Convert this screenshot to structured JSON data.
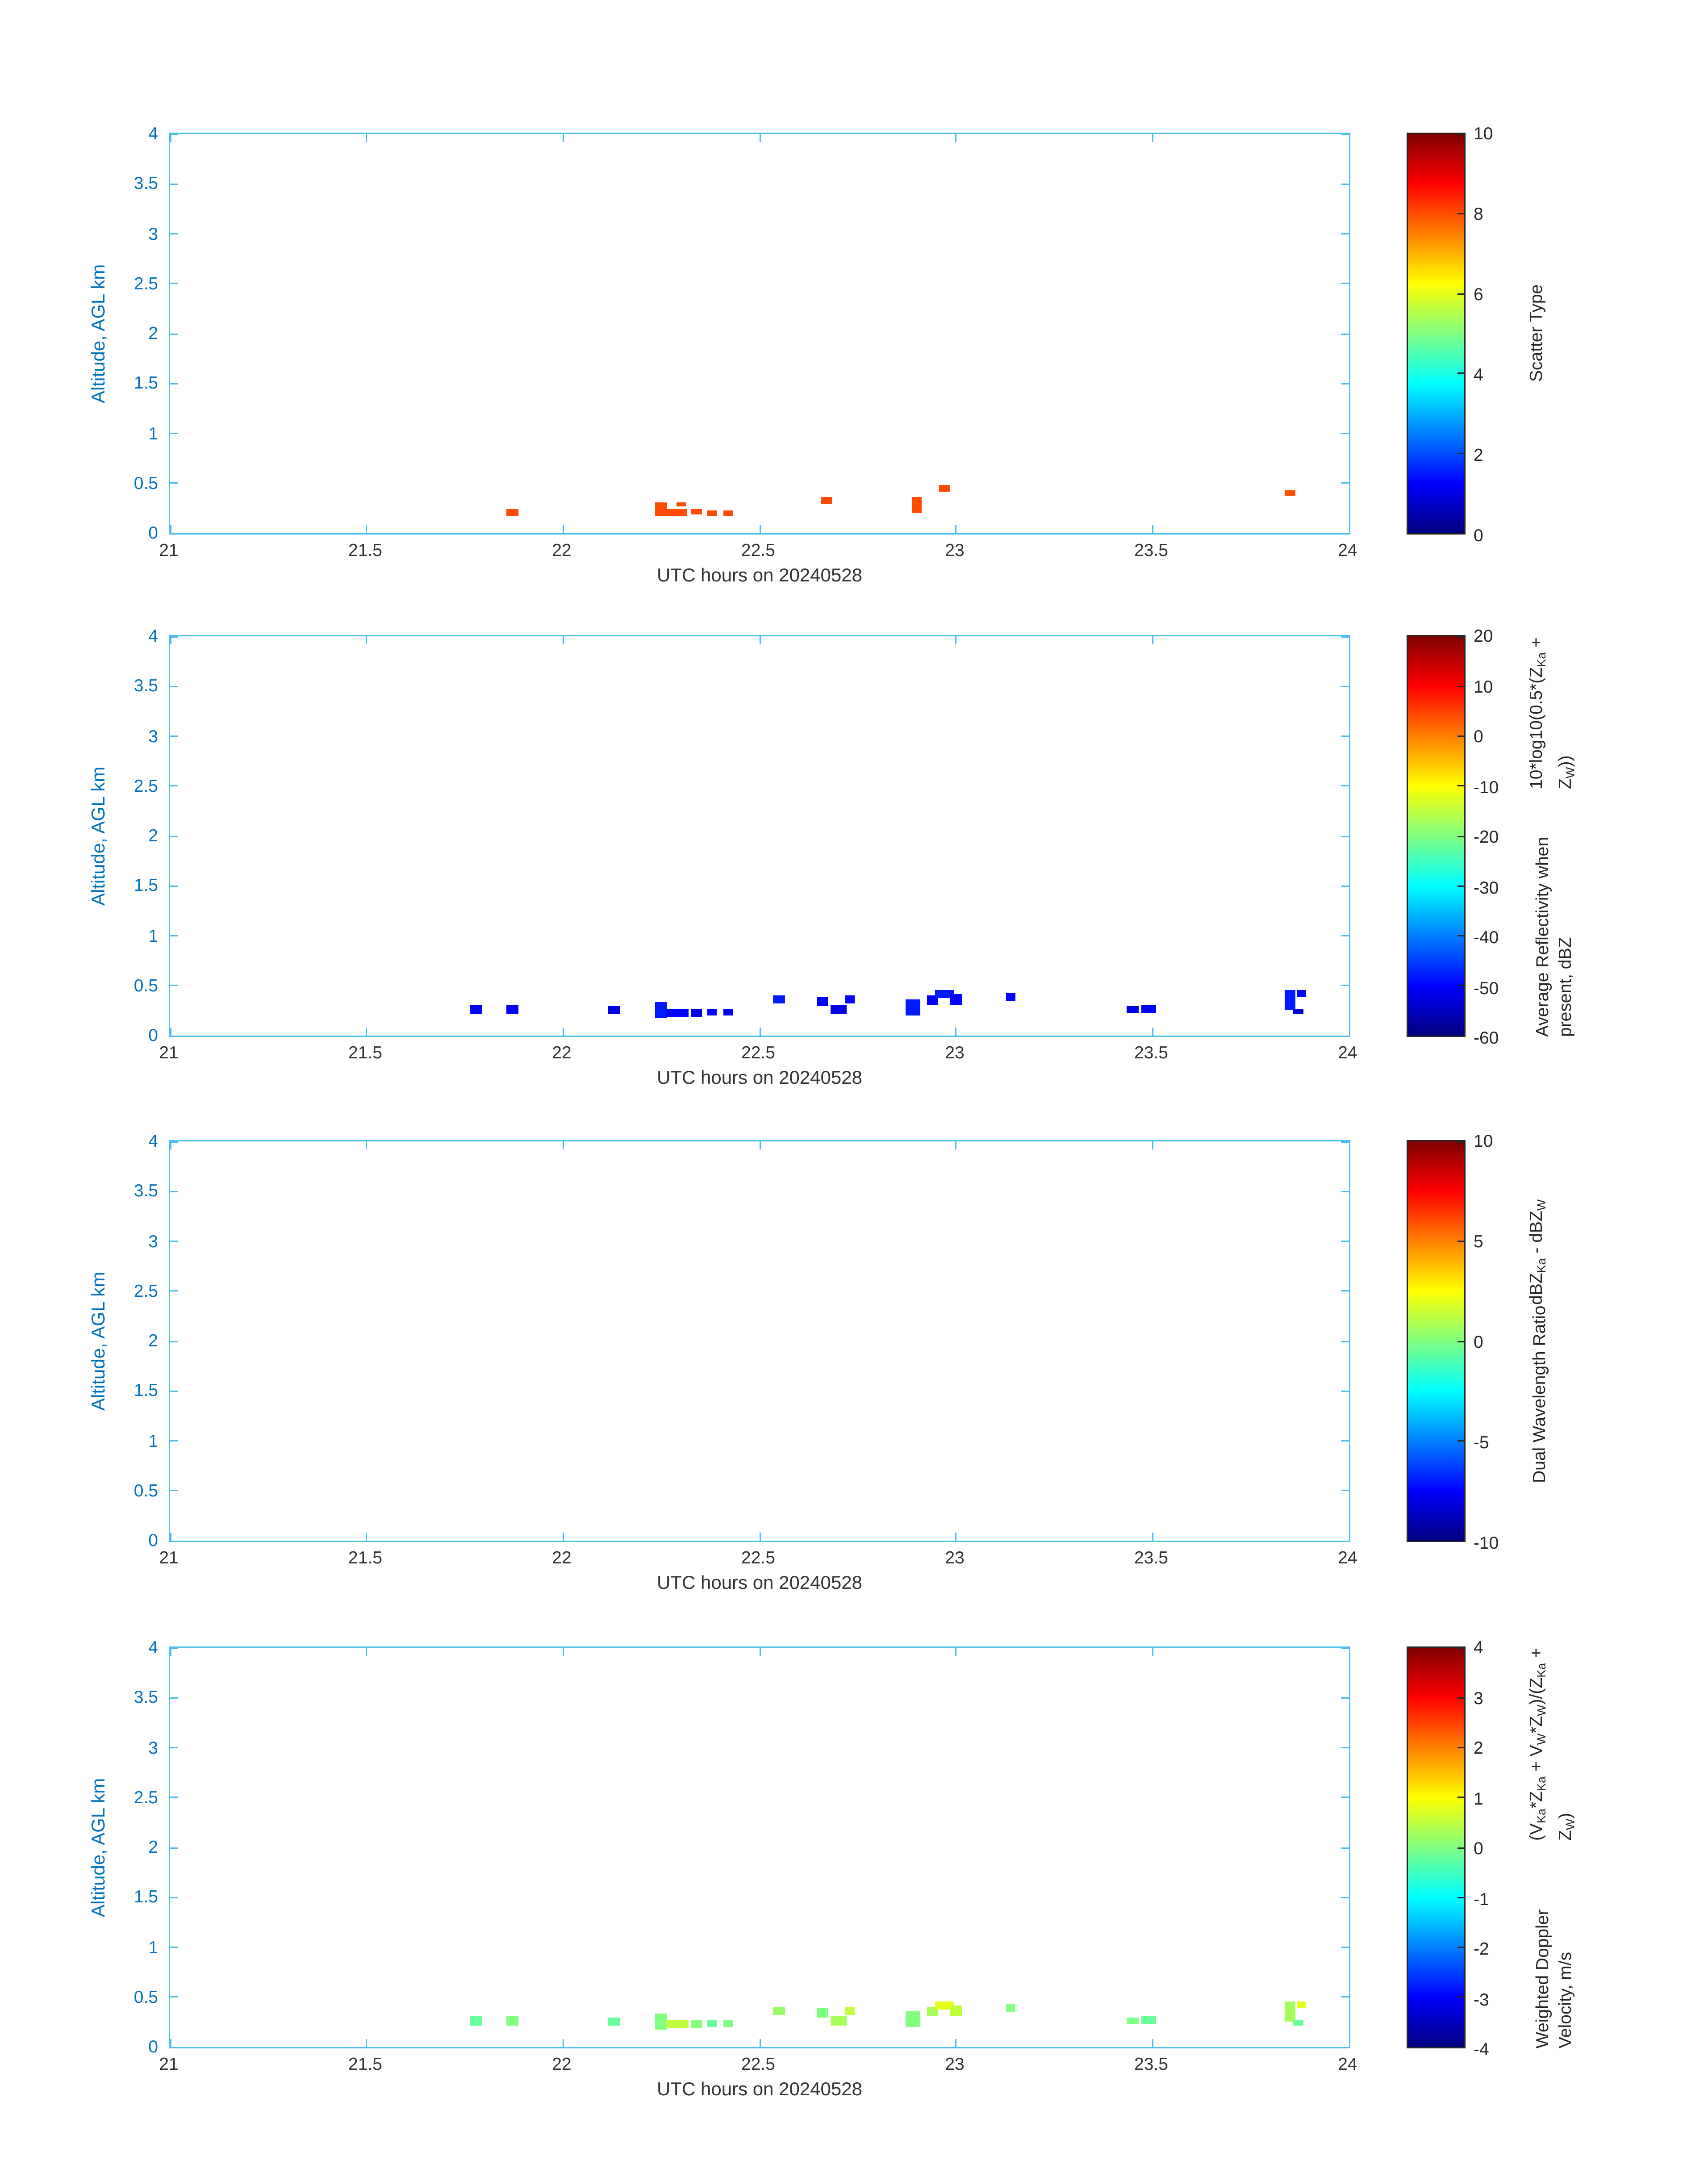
{
  "styles": {
    "background": "#ffffff",
    "axis_color": "#4DBEEE",
    "y_text_color": "#0072BD",
    "x_text_color": "#333333",
    "colorbar_text_color": "#262626",
    "colormap": "jet"
  },
  "chart_data": [
    {
      "type": "heatmap",
      "title": "",
      "xlabel": "UTC hours on 20240528",
      "ylabel": "Altitude, AGL km",
      "xlim": [
        21,
        24
      ],
      "ylim": [
        0,
        4
      ],
      "x_ticks": [
        21,
        21.5,
        22,
        22.5,
        23,
        23.5,
        24
      ],
      "x_tick_labels": [
        "21",
        "21.5",
        "22",
        "22.5",
        "23",
        "23.5",
        "24"
      ],
      "y_ticks": [
        0,
        0.5,
        1,
        1.5,
        2,
        2.5,
        3,
        3.5,
        4
      ],
      "y_tick_labels": [
        "0",
        "0.5",
        "1",
        "1.5",
        "2",
        "2.5",
        "3",
        "3.5",
        "4"
      ],
      "colorbar": {
        "range": [
          0,
          10
        ],
        "ticks": [
          0,
          2,
          4,
          6,
          8,
          10
        ],
        "tick_labels": [
          "0",
          "2",
          "4",
          "6",
          "8",
          "10"
        ],
        "label_lines": [
          "Scatter Type"
        ]
      },
      "points": [
        {
          "x": 21.87,
          "y": 0.21,
          "w": 0.03,
          "h": 0.06,
          "v": 8
        },
        {
          "x": 22.25,
          "y": 0.24,
          "w": 0.03,
          "h": 0.14,
          "v": 8
        },
        {
          "x": 22.29,
          "y": 0.21,
          "w": 0.05,
          "h": 0.06,
          "v": 8
        },
        {
          "x": 22.3,
          "y": 0.29,
          "w": 0.025,
          "h": 0.05,
          "v": 8
        },
        {
          "x": 22.34,
          "y": 0.21,
          "w": 0.025,
          "h": 0.05,
          "v": 8
        },
        {
          "x": 22.38,
          "y": 0.2,
          "w": 0.025,
          "h": 0.05,
          "v": 8
        },
        {
          "x": 22.42,
          "y": 0.2,
          "w": 0.025,
          "h": 0.05,
          "v": 8
        },
        {
          "x": 22.67,
          "y": 0.33,
          "w": 0.025,
          "h": 0.06,
          "v": 8
        },
        {
          "x": 22.9,
          "y": 0.28,
          "w": 0.025,
          "h": 0.16,
          "v": 8
        },
        {
          "x": 22.97,
          "y": 0.45,
          "w": 0.025,
          "h": 0.06,
          "v": 8
        },
        {
          "x": 23.85,
          "y": 0.4,
          "w": 0.025,
          "h": 0.05,
          "v": 8
        }
      ]
    },
    {
      "type": "heatmap",
      "title": "",
      "xlabel": "UTC hours on 20240528",
      "ylabel": "Altitude, AGL km",
      "xlim": [
        21,
        24
      ],
      "ylim": [
        0,
        4
      ],
      "x_ticks": [
        21,
        21.5,
        22,
        22.5,
        23,
        23.5,
        24
      ],
      "x_tick_labels": [
        "21",
        "21.5",
        "22",
        "22.5",
        "23",
        "23.5",
        "24"
      ],
      "y_ticks": [
        0,
        0.5,
        1,
        1.5,
        2,
        2.5,
        3,
        3.5,
        4
      ],
      "y_tick_labels": [
        "0",
        "0.5",
        "1",
        "1.5",
        "2",
        "2.5",
        "3",
        "3.5",
        "4"
      ],
      "colorbar": {
        "range": [
          -60,
          20
        ],
        "ticks": [
          -60,
          -50,
          -40,
          -30,
          -20,
          -10,
          0,
          10,
          20
        ],
        "tick_labels": [
          "-60",
          "-50",
          "-40",
          "-30",
          "-20",
          "-10",
          "0",
          "10",
          "20"
        ],
        "label_lines": [
          "Average Reflectivity when present, dBZ",
          "10*log10(0.5*(Z_{Ka} + Z_{W}))"
        ]
      },
      "points": [
        {
          "x": 21.78,
          "y": 0.26,
          "w": 0.03,
          "h": 0.09,
          "v": -50
        },
        {
          "x": 21.87,
          "y": 0.26,
          "w": 0.03,
          "h": 0.09,
          "v": -50
        },
        {
          "x": 22.13,
          "y": 0.25,
          "w": 0.03,
          "h": 0.08,
          "v": -52
        },
        {
          "x": 22.25,
          "y": 0.26,
          "w": 0.03,
          "h": 0.16,
          "v": -48
        },
        {
          "x": 22.29,
          "y": 0.23,
          "w": 0.06,
          "h": 0.08,
          "v": -50
        },
        {
          "x": 22.34,
          "y": 0.23,
          "w": 0.03,
          "h": 0.08,
          "v": -52
        },
        {
          "x": 22.38,
          "y": 0.23,
          "w": 0.025,
          "h": 0.07,
          "v": -50
        },
        {
          "x": 22.42,
          "y": 0.24,
          "w": 0.025,
          "h": 0.07,
          "v": -52
        },
        {
          "x": 22.55,
          "y": 0.36,
          "w": 0.03,
          "h": 0.08,
          "v": -48
        },
        {
          "x": 22.66,
          "y": 0.34,
          "w": 0.03,
          "h": 0.09,
          "v": -50
        },
        {
          "x": 22.7,
          "y": 0.26,
          "w": 0.04,
          "h": 0.09,
          "v": -52
        },
        {
          "x": 22.73,
          "y": 0.36,
          "w": 0.025,
          "h": 0.08,
          "v": -50
        },
        {
          "x": 22.89,
          "y": 0.28,
          "w": 0.035,
          "h": 0.17,
          "v": -48
        },
        {
          "x": 22.94,
          "y": 0.36,
          "w": 0.03,
          "h": 0.09,
          "v": -50
        },
        {
          "x": 22.97,
          "y": 0.42,
          "w": 0.05,
          "h": 0.08,
          "v": -48
        },
        {
          "x": 23.0,
          "y": 0.36,
          "w": 0.03,
          "h": 0.1,
          "v": -50
        },
        {
          "x": 23.14,
          "y": 0.39,
          "w": 0.025,
          "h": 0.07,
          "v": -50
        },
        {
          "x": 23.45,
          "y": 0.26,
          "w": 0.03,
          "h": 0.07,
          "v": -52
        },
        {
          "x": 23.49,
          "y": 0.27,
          "w": 0.035,
          "h": 0.08,
          "v": -50
        },
        {
          "x": 23.85,
          "y": 0.35,
          "w": 0.03,
          "h": 0.2,
          "v": -48
        },
        {
          "x": 23.88,
          "y": 0.42,
          "w": 0.025,
          "h": 0.07,
          "v": -50
        },
        {
          "x": 23.87,
          "y": 0.24,
          "w": 0.025,
          "h": 0.06,
          "v": -52
        }
      ]
    },
    {
      "type": "heatmap",
      "title": "",
      "xlabel": "UTC hours on 20240528",
      "ylabel": "Altitude, AGL km",
      "xlim": [
        21,
        24
      ],
      "ylim": [
        0,
        4
      ],
      "x_ticks": [
        21,
        21.5,
        22,
        22.5,
        23,
        23.5,
        24
      ],
      "x_tick_labels": [
        "21",
        "21.5",
        "22",
        "22.5",
        "23",
        "23.5",
        "24"
      ],
      "y_ticks": [
        0,
        0.5,
        1,
        1.5,
        2,
        2.5,
        3,
        3.5,
        4
      ],
      "y_tick_labels": [
        "0",
        "0.5",
        "1",
        "1.5",
        "2",
        "2.5",
        "3",
        "3.5",
        "4"
      ],
      "colorbar": {
        "range": [
          -10,
          10
        ],
        "ticks": [
          -10,
          -5,
          0,
          5,
          10
        ],
        "tick_labels": [
          "-10",
          "-5",
          "0",
          "5",
          "10"
        ],
        "label_lines": [
          "Dual Wavelength Ratio",
          "dBZ_{Ka} - dBZ_{W}"
        ]
      },
      "points": []
    },
    {
      "type": "heatmap",
      "title": "",
      "xlabel": "UTC hours on 20240528",
      "ylabel": "Altitude, AGL km",
      "xlim": [
        21,
        24
      ],
      "ylim": [
        0,
        4
      ],
      "x_ticks": [
        21,
        21.5,
        22,
        22.5,
        23,
        23.5,
        24
      ],
      "x_tick_labels": [
        "21",
        "21.5",
        "22",
        "22.5",
        "23",
        "23.5",
        "24"
      ],
      "y_ticks": [
        0,
        0.5,
        1,
        1.5,
        2,
        2.5,
        3,
        3.5,
        4
      ],
      "y_tick_labels": [
        "0",
        "0.5",
        "1",
        "1.5",
        "2",
        "2.5",
        "3",
        "3.5",
        "4"
      ],
      "colorbar": {
        "range": [
          -4,
          4
        ],
        "ticks": [
          -4,
          -3,
          -2,
          -1,
          0,
          1,
          2,
          3,
          4
        ],
        "tick_labels": [
          "-4",
          "-3",
          "-2",
          "-1",
          "0",
          "1",
          "2",
          "3",
          "4"
        ],
        "label_lines": [
          "Weighted Doppler Velocity, m/s",
          "(V_{Ka}*Z_{Ka} + V_{W}*Z_{W})/(Z_{Ka} + Z_{W})"
        ]
      },
      "points": [
        {
          "x": 21.78,
          "y": 0.26,
          "w": 0.03,
          "h": 0.09,
          "v": -0.2
        },
        {
          "x": 21.87,
          "y": 0.26,
          "w": 0.03,
          "h": 0.09,
          "v": 0.0
        },
        {
          "x": 22.13,
          "y": 0.25,
          "w": 0.03,
          "h": 0.08,
          "v": -0.2
        },
        {
          "x": 22.25,
          "y": 0.26,
          "w": 0.03,
          "h": 0.16,
          "v": 0.0
        },
        {
          "x": 22.29,
          "y": 0.23,
          "w": 0.06,
          "h": 0.08,
          "v": 0.5
        },
        {
          "x": 22.34,
          "y": 0.23,
          "w": 0.03,
          "h": 0.08,
          "v": 0.0
        },
        {
          "x": 22.38,
          "y": 0.23,
          "w": 0.025,
          "h": 0.07,
          "v": -0.2
        },
        {
          "x": 22.42,
          "y": 0.24,
          "w": 0.025,
          "h": 0.07,
          "v": 0.0
        },
        {
          "x": 22.55,
          "y": 0.36,
          "w": 0.03,
          "h": 0.08,
          "v": 0.2
        },
        {
          "x": 22.66,
          "y": 0.34,
          "w": 0.03,
          "h": 0.09,
          "v": 0.0
        },
        {
          "x": 22.7,
          "y": 0.26,
          "w": 0.04,
          "h": 0.09,
          "v": 0.3
        },
        {
          "x": 22.73,
          "y": 0.36,
          "w": 0.025,
          "h": 0.08,
          "v": 0.5
        },
        {
          "x": 22.89,
          "y": 0.28,
          "w": 0.035,
          "h": 0.17,
          "v": 0.0
        },
        {
          "x": 22.94,
          "y": 0.36,
          "w": 0.03,
          "h": 0.09,
          "v": 0.3
        },
        {
          "x": 22.97,
          "y": 0.42,
          "w": 0.05,
          "h": 0.08,
          "v": 0.8
        },
        {
          "x": 23.0,
          "y": 0.36,
          "w": 0.03,
          "h": 0.1,
          "v": 0.5
        },
        {
          "x": 23.14,
          "y": 0.39,
          "w": 0.025,
          "h": 0.07,
          "v": 0.0
        },
        {
          "x": 23.45,
          "y": 0.26,
          "w": 0.03,
          "h": 0.07,
          "v": 0.0
        },
        {
          "x": 23.49,
          "y": 0.27,
          "w": 0.035,
          "h": 0.08,
          "v": -0.2
        },
        {
          "x": 23.85,
          "y": 0.35,
          "w": 0.03,
          "h": 0.2,
          "v": 0.3
        },
        {
          "x": 23.88,
          "y": 0.42,
          "w": 0.025,
          "h": 0.07,
          "v": 0.8
        },
        {
          "x": 23.87,
          "y": 0.24,
          "w": 0.025,
          "h": 0.06,
          "v": -0.2
        }
      ]
    }
  ]
}
